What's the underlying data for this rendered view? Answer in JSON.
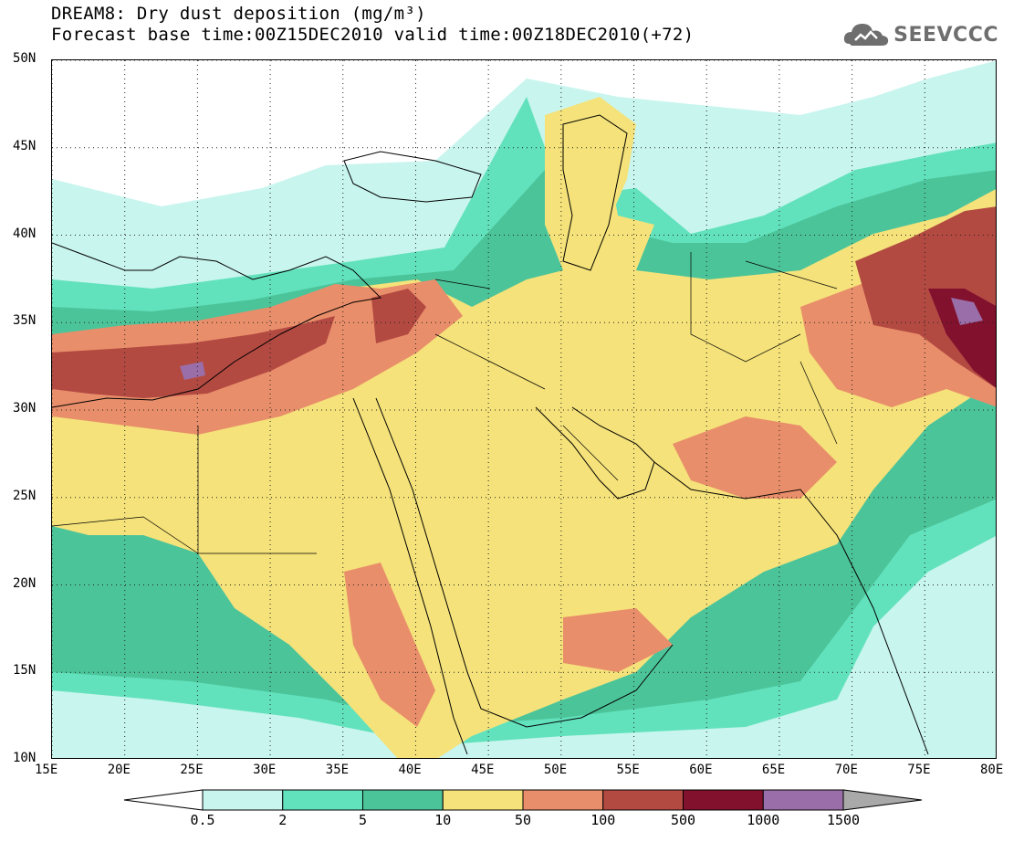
{
  "header": {
    "title": "DREAM8: Dry dust deposition (mg/m³)",
    "subtitle": "Forecast base time:00Z15DEC2010 valid time:00Z18DEC2010(+72)",
    "logo_text": "SEEVCCC",
    "logo_icon": "cloud-logo-icon"
  },
  "map": {
    "lon_range": [
      15,
      80
    ],
    "lat_range": [
      10,
      50
    ],
    "lon_ticks": [
      "15E",
      "20E",
      "25E",
      "30E",
      "35E",
      "40E",
      "45E",
      "50E",
      "55E",
      "60E",
      "65E",
      "70E",
      "75E",
      "80E"
    ],
    "lat_ticks": [
      "10N",
      "15N",
      "20N",
      "25N",
      "30N",
      "35N",
      "40N",
      "45N",
      "50N"
    ],
    "grid": "dotted",
    "background": "#ffffff",
    "coastline_color": "#000000"
  },
  "legend": {
    "boundaries": [
      "0.5",
      "2",
      "5",
      "10",
      "50",
      "100",
      "500",
      "1000",
      "1500"
    ],
    "colors": [
      "#c8f5ee",
      "#62e2bc",
      "#4cc49a",
      "#f5e27a",
      "#e98e6a",
      "#b34a42",
      "#82112e",
      "#9a6ea8"
    ],
    "below_color": "#ffffff",
    "above_color": "#a9a9a9"
  },
  "dust_regions": [
    {
      "name": "north-africa-belt",
      "level": 0,
      "band": "low"
    },
    {
      "name": "arabian-peninsula",
      "level": 3
    },
    {
      "name": "iran-afghanistan",
      "level": 3
    },
    {
      "name": "caspian-kazakhstan",
      "level": 3
    },
    {
      "name": "egypt-libya-plume",
      "level": 5
    },
    {
      "name": "tarim-north-india-plume",
      "level": 6
    }
  ]
}
